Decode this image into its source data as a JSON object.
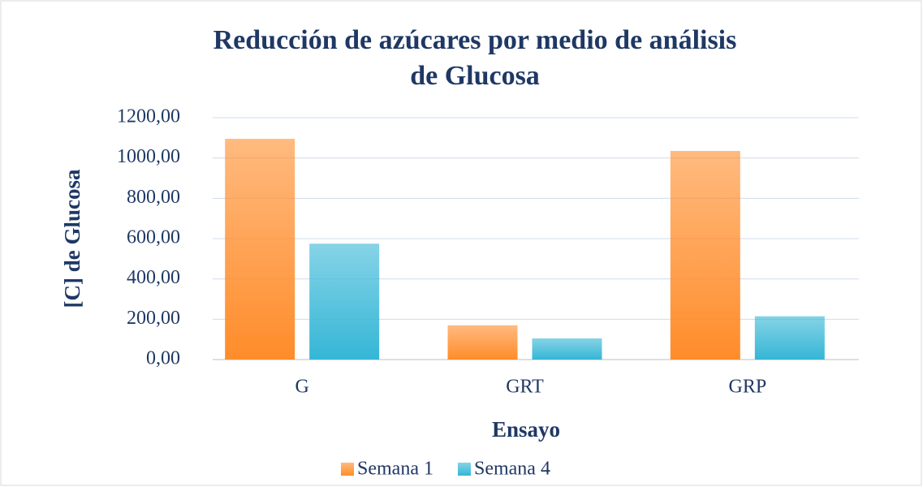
{
  "chart_data": {
    "type": "bar",
    "title": "Reducción de azúcares por medio de análisis de Glucosa",
    "x_label": "Ensayo",
    "y_label": "[C] de Glucosa",
    "categories": [
      "G",
      "GRT",
      "GRP"
    ],
    "series": [
      {
        "name": "Semana 1",
        "color": "#ff8c2a",
        "values": [
          1095,
          170,
          1035
        ]
      },
      {
        "name": "Semana 4",
        "color": "#35b6d6",
        "values": [
          575,
          105,
          215
        ]
      }
    ],
    "ylim": [
      0,
      1200
    ],
    "yticks": [
      {
        "value": 0,
        "label": "0,00"
      },
      {
        "value": 200,
        "label": "200,00"
      },
      {
        "value": 400,
        "label": "400,00"
      },
      {
        "value": 600,
        "label": "600,00"
      },
      {
        "value": 800,
        "label": "800,00"
      },
      {
        "value": 1000,
        "label": "1000,00"
      },
      {
        "value": 1200,
        "label": "1200,00"
      }
    ],
    "grid": true,
    "legend": "bottom"
  }
}
